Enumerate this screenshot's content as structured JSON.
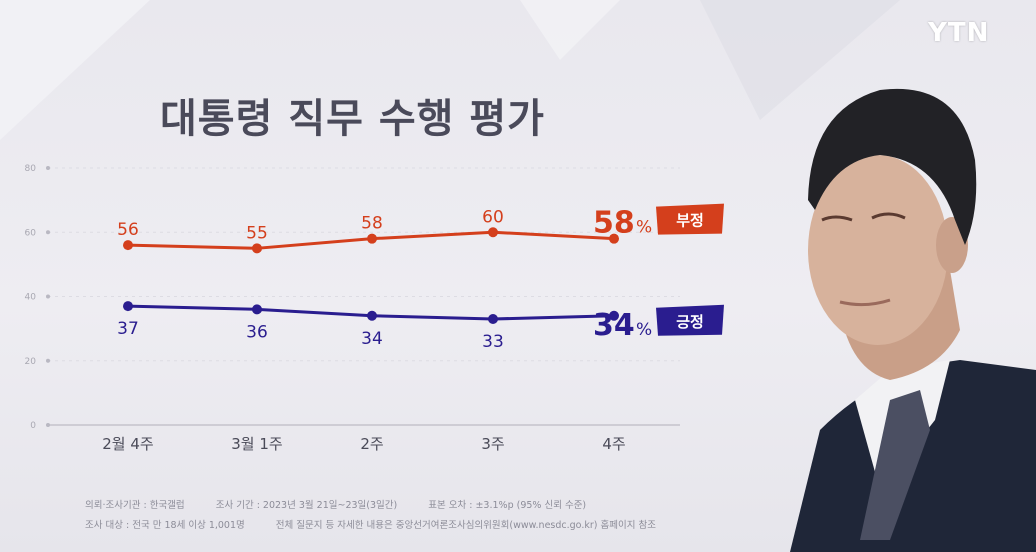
{
  "logo": "YTN",
  "title": "대통령 직무 수행 평가",
  "colors": {
    "negative": "#d43f1c",
    "positive": "#2a1d8f",
    "accent_text_neg": "#e0461f",
    "accent_text_pos": "#28208f"
  },
  "chart_data": {
    "type": "line",
    "title": "대통령 직무 수행 평가",
    "categories": [
      "2월 4주",
      "3월 1주",
      "2주",
      "3주",
      "4주"
    ],
    "yticks": [
      0,
      20,
      40,
      60,
      80
    ],
    "ylim": [
      0,
      80
    ],
    "grid": true,
    "series": [
      {
        "name": "부정",
        "color": "#d43f1c",
        "values": [
          56,
          55,
          58,
          60,
          58
        ],
        "point_labels": [
          "56",
          "55",
          "58",
          "60"
        ],
        "final_value": "58",
        "final_unit": "%"
      },
      {
        "name": "긍정",
        "color": "#2a1d8f",
        "values": [
          37,
          36,
          34,
          33,
          34
        ],
        "point_labels": [
          "37",
          "36",
          "34",
          "33"
        ],
        "final_value": "34",
        "final_unit": "%"
      }
    ]
  },
  "footer": {
    "line1": [
      "의뢰·조사기관 : 한국갤럽",
      "조사 기간 : 2023년 3월 21일~23일(3일간)",
      "표본 오차 : ±3.1%p (95% 신뢰 수준)"
    ],
    "line2": [
      "조사 대상 : 전국 만 18세 이상 1,001명",
      "전체 질문지 등 자세한 내용은 중앙선거여론조사심의위원회(www.nesdc.go.kr) 홈페이지 참조"
    ]
  }
}
